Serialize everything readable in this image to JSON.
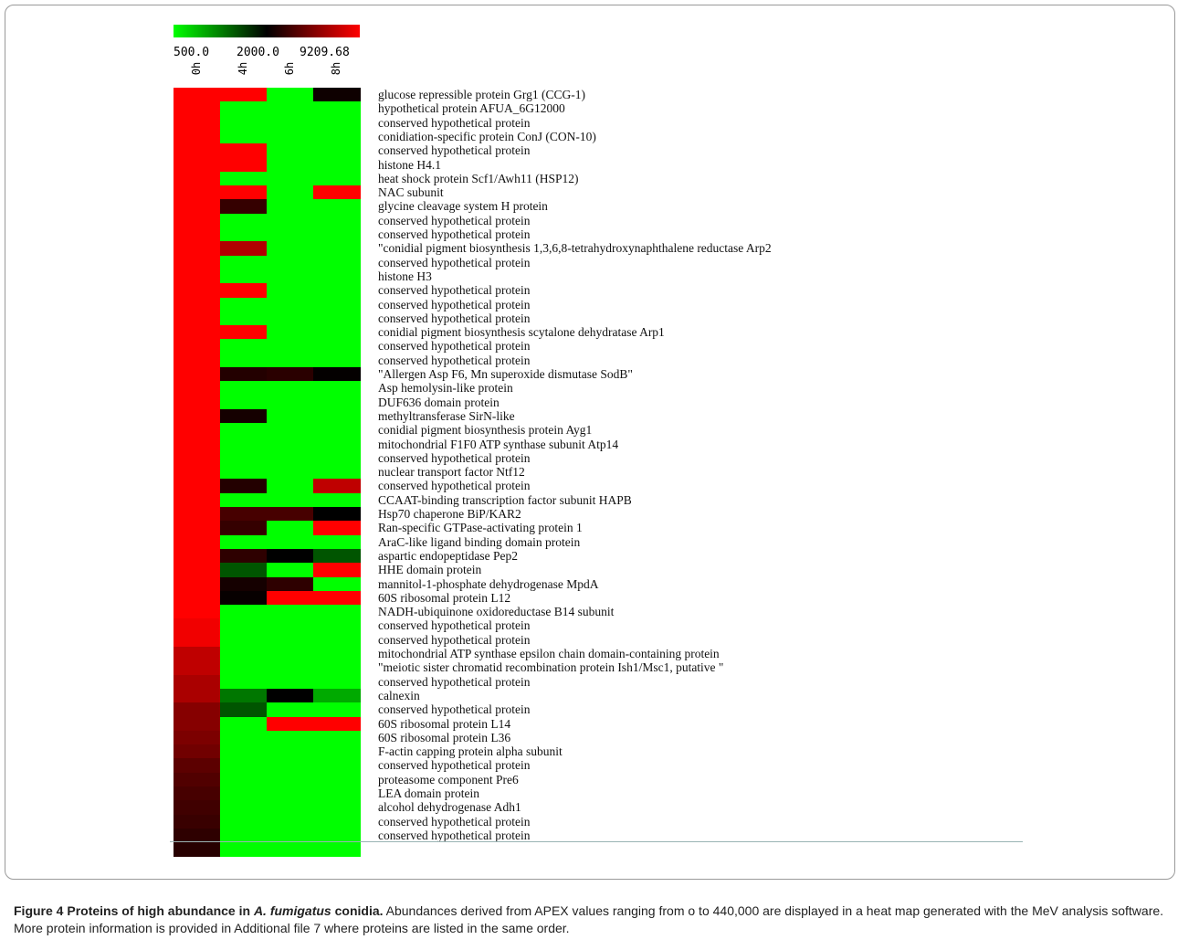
{
  "chart_data": {
    "type": "heatmap",
    "color_scale": {
      "labels": [
        "500.0",
        "2000.0",
        "9209.68"
      ],
      "colors": [
        "#00ff00",
        "#000000",
        "#ff0000"
      ]
    },
    "columns": [
      "0h",
      "4h",
      "6h",
      "8h"
    ],
    "rows": [
      "glucose repressible protein Grg1 (CCG-1)",
      "hypothetical protein AFUA_6G12000",
      "conserved hypothetical protein",
      "conidiation-specific protein ConJ (CON-10)",
      "conserved hypothetical protein",
      "histone H4.1",
      "heat shock protein Scf1/Awh11 (HSP12)",
      "NAC subunit",
      "glycine cleavage system H protein",
      "conserved hypothetical protein",
      "conserved hypothetical protein",
      "\"conidial pigment biosynthesis 1,3,6,8-tetrahydroxynaphthalene reductase Arp2",
      "conserved hypothetical protein",
      "histone H3",
      "conserved hypothetical protein",
      "conserved hypothetical protein",
      "conserved hypothetical protein",
      "conidial pigment biosynthesis scytalone dehydratase Arp1",
      "conserved hypothetical protein",
      "conserved hypothetical protein",
      "\"Allergen Asp F6, Mn superoxide dismutase SodB\"",
      "Asp hemolysin-like protein",
      "DUF636 domain protein",
      "methyltransferase SirN-like",
      "conidial pigment biosynthesis protein Ayg1",
      "mitochondrial F1F0 ATP synthase subunit Atp14",
      "conserved hypothetical protein",
      "nuclear transport factor Ntf12",
      "conserved hypothetical protein",
      "CCAAT-binding transcription factor subunit HAPB",
      "Hsp70 chaperone BiP/KAR2",
      "Ran-specific GTPase-activating protein 1",
      "AraC-like ligand binding domain protein",
      "aspartic endopeptidase Pep2",
      "HHE domain protein",
      "mannitol-1-phosphate dehydrogenase MpdA",
      "60S ribosomal protein L12",
      "NADH-ubiquinone oxidoreductase B14 subunit",
      "conserved hypothetical protein",
      "conserved hypothetical protein",
      "mitochondrial ATP synthase epsilon chain domain-containing protein",
      "\"meiotic sister chromatid recombination protein Ish1/Msc1, putative \"",
      "conserved hypothetical protein",
      "calnexin",
      "conserved hypothetical protein",
      "60S ribosomal protein L14",
      "60S ribosomal protein L36",
      "F-actin capping protein alpha subunit",
      "conserved hypothetical protein",
      "proteasome component Pre6",
      "LEA domain protein",
      "alcohol dehydrogenase Adh1",
      "conserved hypothetical protein",
      "conserved hypothetical protein",
      ""
    ],
    "values": [
      [
        9210,
        9210,
        500,
        2400
      ],
      [
        9210,
        500,
        500,
        500
      ],
      [
        9210,
        500,
        500,
        500
      ],
      [
        9210,
        500,
        500,
        500
      ],
      [
        9210,
        9210,
        500,
        500
      ],
      [
        9210,
        9210,
        500,
        500
      ],
      [
        9210,
        500,
        500,
        500
      ],
      [
        9210,
        9210,
        500,
        9210
      ],
      [
        9210,
        3500,
        500,
        500
      ],
      [
        9210,
        500,
        500,
        500
      ],
      [
        9210,
        500,
        500,
        500
      ],
      [
        9210,
        7000,
        500,
        500
      ],
      [
        9210,
        500,
        500,
        500
      ],
      [
        9210,
        500,
        500,
        500
      ],
      [
        9210,
        9210,
        500,
        500
      ],
      [
        9210,
        500,
        500,
        500
      ],
      [
        9210,
        500,
        500,
        500
      ],
      [
        9210,
        9210,
        500,
        500
      ],
      [
        9210,
        500,
        500,
        500
      ],
      [
        9210,
        500,
        500,
        500
      ],
      [
        9210,
        3000,
        3200,
        2100
      ],
      [
        9210,
        500,
        500,
        500
      ],
      [
        9210,
        500,
        500,
        500
      ],
      [
        9210,
        2600,
        500,
        500
      ],
      [
        9210,
        500,
        500,
        500
      ],
      [
        9210,
        500,
        500,
        500
      ],
      [
        9210,
        500,
        500,
        500
      ],
      [
        9210,
        500,
        500,
        500
      ],
      [
        9210,
        3000,
        500,
        7400
      ],
      [
        9210,
        500,
        500,
        500
      ],
      [
        9210,
        4000,
        4000,
        2000
      ],
      [
        9210,
        3500,
        500,
        9210
      ],
      [
        9210,
        500,
        500,
        500
      ],
      [
        9210,
        3300,
        2000,
        1500
      ],
      [
        9210,
        1500,
        500,
        9210
      ],
      [
        9210,
        2600,
        3300,
        500
      ],
      [
        9210,
        2200,
        9210,
        9210
      ],
      [
        9210,
        500,
        500,
        500
      ],
      [
        8800,
        500,
        500,
        500
      ],
      [
        8800,
        500,
        500,
        500
      ],
      [
        7400,
        500,
        500,
        500
      ],
      [
        7400,
        500,
        500,
        500
      ],
      [
        6800,
        500,
        500,
        500
      ],
      [
        6800,
        1300,
        2000,
        1000
      ],
      [
        5800,
        1500,
        500,
        500
      ],
      [
        5800,
        500,
        9210,
        9210
      ],
      [
        5500,
        500,
        500,
        500
      ],
      [
        5200,
        500,
        500,
        500
      ],
      [
        4600,
        500,
        500,
        500
      ],
      [
        4300,
        500,
        500,
        500
      ],
      [
        4000,
        500,
        500,
        500
      ],
      [
        3800,
        500,
        500,
        500
      ],
      [
        3600,
        500,
        500,
        500
      ],
      [
        3300,
        500,
        500,
        500
      ],
      [
        3100,
        500,
        500,
        500
      ]
    ]
  },
  "caption": {
    "label": "Figure 4",
    "title_pre": "Proteins of high abundance in",
    "title_italic": "A. fumigatus",
    "title_post": "conidia.",
    "body": "Abundances derived from APEX values ranging from o to 440,000 are displayed in a heat map generated with the MeV analysis software. More protein information is provided in Additional file 7 where proteins are listed in the same order."
  }
}
